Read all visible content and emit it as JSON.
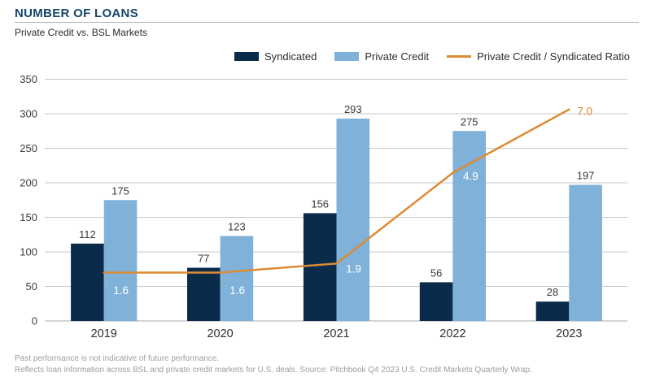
{
  "header": {
    "title": "NUMBER OF LOANS",
    "subtitle": "Private Credit vs. BSL Markets"
  },
  "legend": {
    "syndicated": "Syndicated",
    "private_credit": "Private Credit",
    "ratio": "Private Credit / Syndicated Ratio"
  },
  "colors": {
    "syndicated": "#0a2b4a",
    "private_credit": "#7fb1d9",
    "ratio_line": "#dd8b33",
    "title_navy": "#15456b",
    "gridline": "#c9c9c9",
    "baseline": "#a9a9a9",
    "axis_text": "#3d3d3d",
    "value_text": "#383838",
    "footnote_gray": "#9d9d9d"
  },
  "chart_data": {
    "type": "bar",
    "categories": [
      "2019",
      "2020",
      "2021",
      "2022",
      "2023"
    ],
    "series": [
      {
        "name": "Syndicated",
        "type": "bar",
        "color": "#0a2b4a",
        "values": [
          112,
          77,
          156,
          56,
          28
        ]
      },
      {
        "name": "Private Credit",
        "type": "bar",
        "color": "#7fb1d9",
        "values": [
          175,
          123,
          293,
          275,
          197
        ]
      },
      {
        "name": "Private Credit / Syndicated Ratio",
        "type": "line",
        "color": "#dd8b33",
        "values": [
          1.6,
          1.6,
          1.9,
          4.9,
          7.0
        ]
      }
    ],
    "title": "NUMBER OF LOANS",
    "subtitle": "Private Credit vs. BSL Markets",
    "xlabel": "",
    "ylabel": "",
    "ylim": [
      0,
      350
    ],
    "y_ticks": [
      0,
      50,
      100,
      150,
      200,
      250,
      300,
      350
    ],
    "secondary_ylim": [
      0,
      8
    ],
    "secondary_axis_visible": false,
    "grid": true,
    "legend_position": "top"
  },
  "footnotes": [
    "Past performance is not indicative of future performance.",
    "Reflects loan information across BSL and private credit markets for U.S. deals. Source: Pitchbook Q4 2023 U.S. Credit Markets Quarterly Wrap."
  ]
}
